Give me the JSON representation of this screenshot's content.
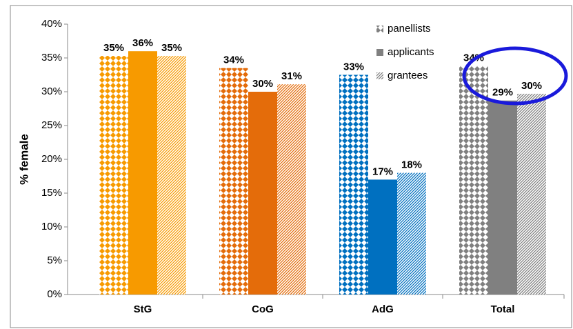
{
  "chart_data": {
    "type": "bar",
    "y_label": "% female",
    "categories": [
      "StG",
      "CoG",
      "AdG",
      "Total"
    ],
    "category_colors": [
      "#f79a00",
      "#e46c0a",
      "#0070c0",
      "#808080"
    ],
    "legend_color": "#808080",
    "series": [
      {
        "name": "panellists",
        "pattern": "dots",
        "values": [
          35.3,
          33.5,
          32.5,
          33.8
        ],
        "value_labels": [
          "35%",
          "34%",
          "33%",
          "34%"
        ]
      },
      {
        "name": "applicants",
        "pattern": "solid",
        "values": [
          36,
          30,
          17,
          28.7
        ],
        "value_labels": [
          "36%",
          "30%",
          "17%",
          "29%"
        ]
      },
      {
        "name": "grantees",
        "pattern": "hatch",
        "values": [
          35.3,
          31.1,
          18,
          29.7
        ],
        "value_labels": [
          "35%",
          "31%",
          "18%",
          "30%"
        ]
      }
    ],
    "ylim": [
      0,
      40
    ],
    "yticks": [
      {
        "value": 0,
        "label": "0%"
      },
      {
        "value": 5,
        "label": "5%"
      },
      {
        "value": 10,
        "label": "10%"
      },
      {
        "value": 15,
        "label": "15%"
      },
      {
        "value": 20,
        "label": "20%"
      },
      {
        "value": 25,
        "label": "25%"
      },
      {
        "value": 30,
        "label": "30%"
      },
      {
        "value": 35,
        "label": "35%"
      },
      {
        "value": 40,
        "label": "40%"
      }
    ],
    "legend": "upper right"
  }
}
